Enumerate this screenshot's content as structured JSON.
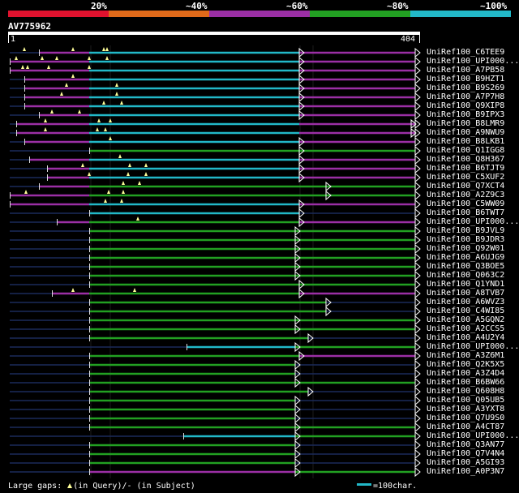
{
  "colors": {
    "background": "#000000",
    "identity_100": "#22b8c8",
    "identity_80": "#22a022",
    "identity_60": "#9b2fa5",
    "identity_40": "#e06a1a",
    "identity_20": "#e0122e",
    "unaligned": "#1a2a5a",
    "gap_marker": "#ffff99"
  },
  "identity_scale": {
    "labels": [
      "20%",
      "~40%",
      "~60%",
      "~80%",
      "~100%"
    ],
    "segment_colors": [
      "#e0122e",
      "#e06a1a",
      "#9b2fa5",
      "#22a022",
      "#22b8c8"
    ]
  },
  "query": {
    "name": "AV775962",
    "start": "1",
    "end": "404"
  },
  "legend": {
    "large_gaps_prefix": "Large gaps:",
    "in_query_text": "(in Query)/",
    "in_subject_text": "- (in Subject)",
    "scale_text": "=100char."
  },
  "hits": [
    {
      "label": "UniRef100_C6TEE9",
      "segs": [
        [
          0,
          36,
          "dark"
        ],
        [
          36,
          98,
          "purple"
        ],
        [
          98,
          357,
          "cyan"
        ],
        [
          357,
          500,
          "purple"
        ]
      ],
      "gaps": [
        [
          18,
          3
        ],
        [
          78,
          3
        ],
        [
          116,
          3
        ],
        [
          120,
          3
        ]
      ],
      "tri": 357
    },
    {
      "label": "UniRef100_UPI000...",
      "segs": [
        [
          0,
          98,
          "purple"
        ],
        [
          98,
          357,
          "cyan"
        ],
        [
          357,
          500,
          "purple"
        ]
      ],
      "gaps": [
        [
          8,
          8
        ],
        [
          40,
          8
        ],
        [
          58,
          8
        ],
        [
          98,
          8
        ],
        [
          120,
          8
        ]
      ],
      "tri": 357
    },
    {
      "label": "UniRef100_A7PB58",
      "segs": [
        [
          0,
          98,
          "purple"
        ],
        [
          98,
          357,
          "cyan"
        ],
        [
          357,
          500,
          "purple"
        ]
      ],
      "gaps": [
        [
          16,
          13
        ],
        [
          22,
          13
        ],
        [
          48,
          13
        ],
        [
          98,
          13
        ]
      ],
      "tri": 357
    },
    {
      "label": "UniRef100_B9HZT1",
      "segs": [
        [
          0,
          18,
          "dark"
        ],
        [
          18,
          98,
          "purple"
        ],
        [
          98,
          357,
          "cyan"
        ],
        [
          357,
          500,
          "purple"
        ]
      ],
      "gaps": [
        [
          78,
          18
        ]
      ],
      "tri": 357
    },
    {
      "label": "UniRef100_B9S269",
      "segs": [
        [
          0,
          18,
          "dark"
        ],
        [
          18,
          98,
          "purple"
        ],
        [
          98,
          357,
          "cyan"
        ],
        [
          357,
          500,
          "purple"
        ]
      ],
      "gaps": [
        [
          70,
          23
        ],
        [
          132,
          23
        ]
      ],
      "tri": 357
    },
    {
      "label": "UniRef100_A7P7H8",
      "segs": [
        [
          0,
          18,
          "dark"
        ],
        [
          18,
          98,
          "purple"
        ],
        [
          98,
          357,
          "cyan"
        ],
        [
          357,
          500,
          "purple"
        ]
      ],
      "gaps": [
        [
          64,
          28
        ],
        [
          132,
          28
        ]
      ],
      "tri": 357
    },
    {
      "label": "UniRef100_Q9XIP8",
      "segs": [
        [
          0,
          18,
          "dark"
        ],
        [
          18,
          98,
          "purple"
        ],
        [
          98,
          357,
          "cyan"
        ],
        [
          357,
          500,
          "purple"
        ]
      ],
      "gaps": [
        [
          116,
          28
        ],
        [
          138,
          28
        ]
      ],
      "tri": 357
    },
    {
      "label": "UniRef100_B9IPX3",
      "segs": [
        [
          0,
          36,
          "dark"
        ],
        [
          36,
          98,
          "purple"
        ],
        [
          98,
          357,
          "cyan"
        ],
        [
          357,
          500,
          "purple"
        ]
      ],
      "gaps": [
        [
          52,
          33
        ],
        [
          86,
          33
        ]
      ],
      "tri": 357
    },
    {
      "label": "UniRef100_B8LMR9",
      "segs": [
        [
          0,
          8,
          "dark"
        ],
        [
          8,
          98,
          "purple"
        ],
        [
          98,
          357,
          "cyan"
        ],
        [
          357,
          500,
          "purple"
        ]
      ],
      "gaps": [
        [
          44,
          38
        ],
        [
          110,
          38
        ],
        [
          124,
          38
        ]
      ],
      "tri": 495
    },
    {
      "label": "UniRef100_A9NWU9",
      "segs": [
        [
          0,
          8,
          "dark"
        ],
        [
          8,
          98,
          "purple"
        ],
        [
          98,
          357,
          "cyan"
        ],
        [
          357,
          500,
          "purple"
        ]
      ],
      "gaps": [
        [
          44,
          43
        ],
        [
          108,
          43
        ],
        [
          118,
          43
        ]
      ],
      "tri": 495
    },
    {
      "label": "UniRef100_B8LKB1",
      "segs": [
        [
          0,
          18,
          "dark"
        ],
        [
          18,
          98,
          "purple"
        ],
        [
          98,
          357,
          "cyan"
        ],
        [
          357,
          500,
          "purple"
        ]
      ],
      "gaps": [
        [
          124,
          48
        ]
      ],
      "tri": 357
    },
    {
      "label": "UniRef100_Q1IGG8",
      "segs": [
        [
          0,
          98,
          "dark"
        ],
        [
          98,
          357,
          "green"
        ],
        [
          357,
          500,
          "green"
        ]
      ],
      "gaps": [],
      "tri": 357
    },
    {
      "label": "UniRef100_Q8H367",
      "segs": [
        [
          0,
          24,
          "dark"
        ],
        [
          24,
          98,
          "purple"
        ],
        [
          98,
          357,
          "cyan"
        ],
        [
          357,
          500,
          "purple"
        ]
      ],
      "gaps": [
        [
          136,
          58
        ]
      ],
      "tri": 357
    },
    {
      "label": "UniRef100_B6TJT9",
      "segs": [
        [
          0,
          46,
          "dark"
        ],
        [
          46,
          98,
          "purple"
        ],
        [
          98,
          357,
          "cyan"
        ],
        [
          357,
          500,
          "purple"
        ]
      ],
      "gaps": [
        [
          90,
          63
        ],
        [
          148,
          63
        ],
        [
          168,
          63
        ]
      ],
      "tri": 357
    },
    {
      "label": "UniRef100_C5XUF2",
      "segs": [
        [
          0,
          46,
          "dark"
        ],
        [
          46,
          98,
          "purple"
        ],
        [
          98,
          357,
          "cyan"
        ],
        [
          357,
          500,
          "purple"
        ]
      ],
      "gaps": [
        [
          98,
          68
        ],
        [
          146,
          68
        ],
        [
          168,
          68
        ]
      ],
      "tri": 357
    },
    {
      "label": "UniRef100_Q7XCT4",
      "segs": [
        [
          0,
          36,
          "dark"
        ],
        [
          36,
          98,
          "purple"
        ],
        [
          98,
          390,
          "green"
        ],
        [
          390,
          500,
          "green"
        ]
      ],
      "gaps": [
        [
          140,
          73
        ],
        [
          160,
          73
        ]
      ],
      "tri": 390
    },
    {
      "label": "UniRef100_A2Z9C3",
      "segs": [
        [
          0,
          8,
          "purple"
        ],
        [
          8,
          98,
          "purple"
        ],
        [
          98,
          390,
          "green"
        ],
        [
          390,
          500,
          "green"
        ]
      ],
      "gaps": [
        [
          20,
          78
        ],
        [
          122,
          78
        ],
        [
          140,
          78
        ]
      ],
      "tri": 390
    },
    {
      "label": "UniRef100_C5WW09",
      "segs": [
        [
          0,
          98,
          "purple"
        ],
        [
          98,
          357,
          "cyan"
        ],
        [
          357,
          500,
          "purple"
        ]
      ],
      "gaps": [
        [
          118,
          83
        ],
        [
          138,
          83
        ]
      ],
      "tri": 357
    },
    {
      "label": "UniRef100_B6TWT7",
      "segs": [
        [
          0,
          98,
          "dark"
        ],
        [
          98,
          357,
          "cyan"
        ],
        [
          357,
          500,
          "dark"
        ]
      ],
      "gaps": [],
      "tri": 357
    },
    {
      "label": "UniRef100_UPI000...",
      "segs": [
        [
          0,
          58,
          "dark"
        ],
        [
          58,
          98,
          "purple"
        ],
        [
          98,
          357,
          "green"
        ],
        [
          357,
          500,
          "purple"
        ]
      ],
      "gaps": [
        [
          158,
          93
        ]
      ],
      "tri": 357
    },
    {
      "label": "UniRef100_B9JVL9",
      "segs": [
        [
          0,
          98,
          "dark"
        ],
        [
          98,
          352,
          "green"
        ],
        [
          352,
          500,
          "green"
        ]
      ],
      "gaps": [],
      "tri": 352
    },
    {
      "label": "UniRef100_B9JDR3",
      "segs": [
        [
          0,
          98,
          "dark"
        ],
        [
          98,
          352,
          "green"
        ],
        [
          352,
          500,
          "green"
        ]
      ],
      "gaps": [],
      "tri": 352
    },
    {
      "label": "UniRef100_Q92W01",
      "segs": [
        [
          0,
          98,
          "dark"
        ],
        [
          98,
          352,
          "green"
        ],
        [
          352,
          500,
          "green"
        ]
      ],
      "gaps": [],
      "tri": 352
    },
    {
      "label": "UniRef100_A6UJG9",
      "segs": [
        [
          0,
          98,
          "dark"
        ],
        [
          98,
          352,
          "green"
        ],
        [
          352,
          500,
          "green"
        ]
      ],
      "gaps": [],
      "tri": 352
    },
    {
      "label": "UniRef100_Q3BOE5",
      "segs": [
        [
          0,
          98,
          "dark"
        ],
        [
          98,
          352,
          "green"
        ],
        [
          352,
          500,
          "green"
        ]
      ],
      "gaps": [],
      "tri": 352
    },
    {
      "label": "UniRef100_Q063C2",
      "segs": [
        [
          0,
          98,
          "dark"
        ],
        [
          98,
          352,
          "green"
        ],
        [
          352,
          500,
          "green"
        ]
      ],
      "gaps": [],
      "tri": 352
    },
    {
      "label": "UniRef100_Q1YND1",
      "segs": [
        [
          0,
          98,
          "dark"
        ],
        [
          98,
          352,
          "green"
        ],
        [
          352,
          500,
          "green"
        ]
      ],
      "gaps": [],
      "tri": 357
    },
    {
      "label": "UniRef100_A8TVB7",
      "segs": [
        [
          0,
          52,
          "dark"
        ],
        [
          52,
          98,
          "purple"
        ],
        [
          98,
          357,
          "green"
        ],
        [
          357,
          500,
          "purple"
        ]
      ],
      "gaps": [
        [
          78,
          133
        ],
        [
          154,
          133
        ]
      ],
      "tri": 357
    },
    {
      "label": "UniRef100_A6WVZ3",
      "segs": [
        [
          0,
          98,
          "dark"
        ],
        [
          98,
          390,
          "green"
        ],
        [
          390,
          500,
          "dark"
        ]
      ],
      "gaps": [],
      "tri": 390
    },
    {
      "label": "UniRef100_C4WI85",
      "segs": [
        [
          0,
          98,
          "dark"
        ],
        [
          98,
          390,
          "green"
        ],
        [
          390,
          500,
          "dark"
        ]
      ],
      "gaps": [],
      "tri": 390
    },
    {
      "label": "UniRef100_A5GQN2",
      "segs": [
        [
          0,
          98,
          "dark"
        ],
        [
          98,
          352,
          "green"
        ],
        [
          352,
          500,
          "green"
        ]
      ],
      "gaps": [],
      "tri": 352
    },
    {
      "label": "UniRef100_A2CCS5",
      "segs": [
        [
          0,
          98,
          "dark"
        ],
        [
          98,
          352,
          "green"
        ],
        [
          352,
          500,
          "green"
        ]
      ],
      "gaps": [],
      "tri": 352
    },
    {
      "label": "UniRef100_A4U2Y4",
      "segs": [
        [
          0,
          98,
          "dark"
        ],
        [
          98,
          368,
          "green"
        ],
        [
          368,
          500,
          "dark"
        ]
      ],
      "gaps": [],
      "tri": 368
    },
    {
      "label": "UniRef100_UPI000...",
      "segs": [
        [
          0,
          218,
          "dark"
        ],
        [
          218,
          352,
          "cyan"
        ],
        [
          352,
          500,
          "green"
        ]
      ],
      "gaps": [],
      "tri": 352
    },
    {
      "label": "UniRef100_A3Z6M1",
      "segs": [
        [
          0,
          98,
          "dark"
        ],
        [
          98,
          357,
          "green"
        ],
        [
          357,
          500,
          "purple"
        ]
      ],
      "gaps": [],
      "tri": 357
    },
    {
      "label": "UniRef100_Q2K5X5",
      "segs": [
        [
          0,
          98,
          "dark"
        ],
        [
          98,
          352,
          "green"
        ],
        [
          352,
          500,
          "dark"
        ]
      ],
      "gaps": [],
      "tri": 352
    },
    {
      "label": "UniRef100_A3Z4D4",
      "segs": [
        [
          0,
          98,
          "dark"
        ],
        [
          98,
          352,
          "green"
        ],
        [
          352,
          500,
          "dark"
        ]
      ],
      "gaps": [],
      "tri": 352
    },
    {
      "label": "UniRef100_B6BW66",
      "segs": [
        [
          0,
          98,
          "dark"
        ],
        [
          98,
          352,
          "green"
        ],
        [
          352,
          500,
          "green"
        ]
      ],
      "gaps": [],
      "tri": 352
    },
    {
      "label": "UniRef100_Q608H8",
      "segs": [
        [
          0,
          98,
          "dark"
        ],
        [
          98,
          368,
          "green"
        ],
        [
          368,
          500,
          "dark"
        ]
      ],
      "gaps": [],
      "tri": 368
    },
    {
      "label": "UniRef100_Q05UB5",
      "segs": [
        [
          0,
          98,
          "dark"
        ],
        [
          98,
          352,
          "green"
        ],
        [
          352,
          500,
          "dark"
        ]
      ],
      "gaps": [],
      "tri": 352
    },
    {
      "label": "UniRef100_A3YXT8",
      "segs": [
        [
          0,
          98,
          "dark"
        ],
        [
          98,
          352,
          "green"
        ],
        [
          352,
          500,
          "dark"
        ]
      ],
      "gaps": [],
      "tri": 352
    },
    {
      "label": "UniRef100_Q7U9S0",
      "segs": [
        [
          0,
          98,
          "dark"
        ],
        [
          98,
          352,
          "green"
        ],
        [
          352,
          500,
          "dark"
        ]
      ],
      "gaps": [],
      "tri": 352
    },
    {
      "label": "UniRef100_A4CT87",
      "segs": [
        [
          0,
          98,
          "dark"
        ],
        [
          98,
          352,
          "green"
        ],
        [
          352,
          500,
          "green"
        ]
      ],
      "gaps": [],
      "tri": 352
    },
    {
      "label": "UniRef100_UPI000...",
      "segs": [
        [
          0,
          214,
          "dark"
        ],
        [
          214,
          352,
          "cyan"
        ],
        [
          352,
          500,
          "green"
        ]
      ],
      "gaps": [],
      "tri": 352
    },
    {
      "label": "UniRef100_Q3AN77",
      "segs": [
        [
          0,
          98,
          "dark"
        ],
        [
          98,
          352,
          "green"
        ],
        [
          352,
          500,
          "dark"
        ]
      ],
      "gaps": [],
      "tri": 352
    },
    {
      "label": "UniRef100_Q7V4N4",
      "segs": [
        [
          0,
          98,
          "dark"
        ],
        [
          98,
          352,
          "green"
        ],
        [
          352,
          500,
          "dark"
        ]
      ],
      "gaps": [],
      "tri": 352
    },
    {
      "label": "UniRef100_A5GI93",
      "segs": [
        [
          0,
          98,
          "dark"
        ],
        [
          98,
          352,
          "green"
        ],
        [
          352,
          500,
          "dark"
        ]
      ],
      "gaps": [],
      "tri": 352
    },
    {
      "label": "UniRef100_A0P3N7",
      "segs": [
        [
          0,
          98,
          "dark"
        ],
        [
          98,
          352,
          "purple"
        ],
        [
          352,
          500,
          "green"
        ]
      ],
      "gaps": [],
      "tri": 352
    }
  ]
}
